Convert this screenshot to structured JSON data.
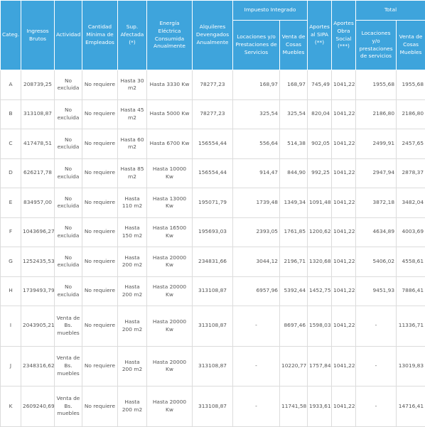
{
  "table": {
    "columns": [
      "Categ.",
      "Ingresos Brutos",
      "Actividad",
      "Cantidad Mínima de Empleados",
      "Sup. Afectada (*)",
      "Energía Eléctrica Consumida Anualmente",
      "Alquileres Devengados Anualmente",
      "Locaciones y/o Prestaciones de Servicios",
      "Venta de Cosas Muebles",
      "Aportes al SIPA (**)",
      "Aportes Obra Social (***)",
      "Locaciones y/o prestaciones de servicios",
      "Venta de Cosas Muebles"
    ],
    "groups": [
      "Impuesto Integrado",
      "Total"
    ],
    "rows": [
      [
        "A",
        "208739,25",
        "No excluida",
        "No requiere",
        "Hasta 30 m2",
        "Hasta 3330 Kw",
        "78277,23",
        "168,97",
        "168,97",
        "745,49",
        "1041,22",
        "1955,68",
        "1955,68"
      ],
      [
        "B",
        "313108,87",
        "No excluida",
        "No requiere",
        "Hasta 45 m2",
        "Hasta 5000 Kw",
        "78277,23",
        "325,54",
        "325,54",
        "820,04",
        "1041,22",
        "2186,80",
        "2186,80"
      ],
      [
        "C",
        "417478,51",
        "No excluida",
        "No requiere",
        "Hasta 60 m2",
        "Hasta 6700 Kw",
        "156554,44",
        "556,64",
        "514,38",
        "902,05",
        "1041,22",
        "2499,91",
        "2457,65"
      ],
      [
        "D",
        "626217,78",
        "No excluida",
        "No requiere",
        "Hasta 85 m2",
        "Hasta 10000 Kw",
        "156554,44",
        "914,47",
        "844,90",
        "992,25",
        "1041,22",
        "2947,94",
        "2878,37"
      ],
      [
        "E",
        "834957,00",
        "No excluida",
        "No requiere",
        "Hasta 110 m2",
        "Hasta 13000 Kw",
        "195071,79",
        "1739,48",
        "1349,34",
        "1091,48",
        "1041,22",
        "3872,18",
        "3482,04"
      ],
      [
        "F",
        "1043696,27",
        "No excluida",
        "No requiere",
        "Hasta 150 m2",
        "Hasta 16500 Kw",
        "195693,03",
        "2393,05",
        "1761,85",
        "1200,62",
        "1041,22",
        "4634,89",
        "4003,69"
      ],
      [
        "G",
        "1252435,53",
        "No excluida",
        "No requiere",
        "Hasta 200 m2",
        "Hasta 20000 Kw",
        "234831,66",
        "3044,12",
        "2196,71",
        "1320,68",
        "1041,22",
        "5406,02",
        "4558,61"
      ],
      [
        "H",
        "1739493,79",
        "No excluida",
        "No requiere",
        "Hasta 200 m2",
        "Hasta 20000 Kw",
        "313108,87",
        "6957,96",
        "5392,44",
        "1452,75",
        "1041,22",
        "9451,93",
        "7886,41"
      ],
      [
        "I",
        "2043905,21",
        "Venta de Bs. muebles",
        "No requiere",
        "Hasta 200 m2",
        "Hasta 20000 Kw",
        "313108,87",
        "-",
        "8697,46",
        "1598,03",
        "1041,22",
        "-",
        "11336,71"
      ],
      [
        "J",
        "2348316,62",
        "Venta de Bs. muebles",
        "No requiere",
        "Hasta 200 m2",
        "Hasta 20000 Kw",
        "313108,87",
        "-",
        "10220,77",
        "1757,84",
        "1041,22",
        "-",
        "13019,83"
      ],
      [
        "K",
        "2609240,69",
        "Venta de Bs. muebles",
        "No requiere",
        "Hasta 200 m2",
        "Hasta 20000 Kw",
        "313108,87",
        "-",
        "11741,58",
        "1933,61",
        "1041,22",
        "-",
        "14716,41"
      ]
    ]
  }
}
